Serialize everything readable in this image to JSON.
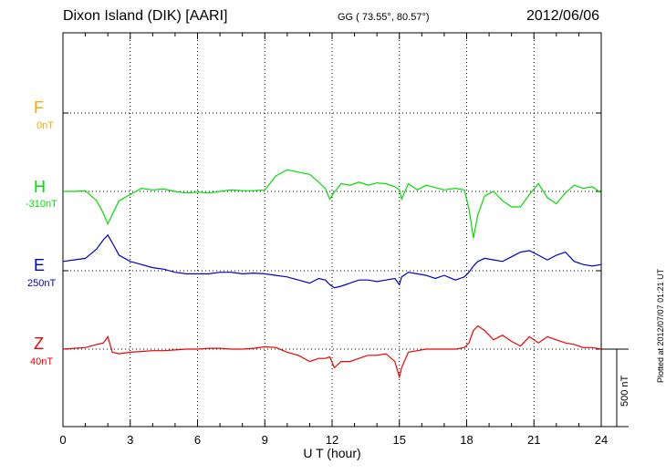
{
  "header": {
    "station": "Dixon Island (DIK)  [AARI]",
    "coords": "GG ( 73.55°,  80.57°)",
    "date": "2012/06/06"
  },
  "plotted_note": "Plotted at 2012/07/07 01:21 UT",
  "scale_label": "500 nT",
  "channels": [
    {
      "name": "F",
      "offset": "0nT",
      "color": "#ffa500"
    },
    {
      "name": "H",
      "offset": "-310nT",
      "color": "#00dd00"
    },
    {
      "name": "E",
      "offset": "250nT",
      "color": "#0000cc"
    },
    {
      "name": "Z",
      "offset": "40nT",
      "color": "#ee0000"
    }
  ],
  "chart_data": {
    "type": "line",
    "title": "Dixon Island (DIK)  [AARI]",
    "xlabel": "U T (hour)",
    "xlim": [
      0,
      24
    ],
    "xticks": [
      "0",
      "3",
      "6",
      "9",
      "12",
      "15",
      "18",
      "21",
      "24"
    ],
    "scale_bar_nT": 500,
    "grid": true,
    "series": [
      {
        "name": "H",
        "x": [
          0,
          0.5,
          1,
          1.5,
          1.8,
          2,
          2.2,
          2.5,
          3,
          3.5,
          4,
          4.5,
          5,
          5.5,
          6,
          6.5,
          7,
          7.5,
          8,
          8.5,
          9,
          9.5,
          10,
          10.5,
          11,
          11.4,
          11.7,
          11.9,
          12.1,
          12.4,
          12.8,
          13.2,
          13.6,
          14,
          14.4,
          14.8,
          15.0,
          15.1,
          15.4,
          15.8,
          16.2,
          16.6,
          17,
          17.5,
          17.9,
          18.1,
          18.3,
          18.5,
          18.8,
          19.2,
          19.6,
          20,
          20.4,
          20.8,
          21.2,
          21.6,
          22,
          22.4,
          22.8,
          23.2,
          23.6,
          24
        ],
        "y": [
          0,
          0,
          5,
          -60,
          -140,
          -210,
          -150,
          -60,
          -20,
          20,
          10,
          15,
          0,
          -10,
          -5,
          -10,
          0,
          10,
          5,
          5,
          10,
          100,
          140,
          125,
          110,
          60,
          20,
          -50,
          -5,
          50,
          40,
          60,
          40,
          55,
          50,
          30,
          10,
          -50,
          50,
          10,
          40,
          25,
          10,
          20,
          10,
          -110,
          -300,
          -150,
          -30,
          0,
          -60,
          -100,
          -100,
          -20,
          50,
          -40,
          -80,
          -10,
          40,
          20,
          30,
          -10
        ]
      },
      {
        "name": "E",
        "x": [
          0,
          0.5,
          1,
          1.5,
          1.8,
          2,
          2.2,
          2.5,
          3,
          3.5,
          4,
          4.5,
          5,
          5.5,
          6,
          6.5,
          7,
          7.5,
          8,
          8.5,
          9,
          9.5,
          10,
          10.5,
          11,
          11.4,
          11.7,
          11.9,
          12.1,
          12.4,
          12.8,
          13.2,
          13.6,
          14,
          14.4,
          14.8,
          15.0,
          15.1,
          15.4,
          15.8,
          16.2,
          16.6,
          17,
          17.5,
          17.9,
          18.1,
          18.3,
          18.5,
          18.8,
          19.2,
          19.6,
          20,
          20.4,
          20.8,
          21.2,
          21.6,
          22,
          22.4,
          22.8,
          23.2,
          23.6,
          24
        ],
        "y": [
          60,
          70,
          80,
          140,
          200,
          230,
          180,
          100,
          60,
          40,
          20,
          10,
          -10,
          -20,
          -20,
          -20,
          -10,
          -10,
          -20,
          -15,
          -20,
          -30,
          -40,
          -60,
          -80,
          -50,
          -60,
          -90,
          -110,
          -100,
          -80,
          -60,
          -60,
          -70,
          -60,
          -50,
          -90,
          -40,
          -10,
          -20,
          -30,
          -50,
          -30,
          -60,
          -40,
          -10,
          30,
          60,
          80,
          70,
          60,
          90,
          120,
          130,
          100,
          70,
          100,
          120,
          60,
          40,
          30,
          40
        ]
      },
      {
        "name": "Z",
        "x": [
          0,
          0.5,
          1,
          1.5,
          1.8,
          2,
          2.2,
          2.5,
          3,
          3.5,
          4,
          4.5,
          5,
          5.5,
          6,
          6.5,
          7,
          7.5,
          8,
          8.5,
          9,
          9.5,
          10,
          10.5,
          11,
          11.4,
          11.7,
          11.9,
          12.1,
          12.4,
          12.8,
          13.2,
          13.6,
          14,
          14.4,
          14.8,
          15.0,
          15.1,
          15.4,
          15.8,
          16.2,
          16.6,
          17,
          17.5,
          17.9,
          18.1,
          18.3,
          18.5,
          18.8,
          19.2,
          19.6,
          20,
          20.4,
          20.8,
          21.2,
          21.6,
          22,
          22.4,
          22.8,
          23.2,
          23.6,
          24
        ],
        "y": [
          0,
          5,
          10,
          30,
          40,
          80,
          -20,
          -30,
          -20,
          -15,
          -10,
          -10,
          -5,
          0,
          0,
          5,
          5,
          0,
          0,
          5,
          15,
          10,
          -20,
          -40,
          -80,
          -60,
          -60,
          -50,
          -120,
          -80,
          -80,
          -60,
          -40,
          -40,
          -30,
          -80,
          -180,
          -120,
          -20,
          -10,
          0,
          0,
          0,
          0,
          10,
          40,
          120,
          150,
          120,
          60,
          90,
          50,
          20,
          80,
          40,
          80,
          60,
          40,
          30,
          10,
          10,
          0
        ]
      }
    ]
  }
}
